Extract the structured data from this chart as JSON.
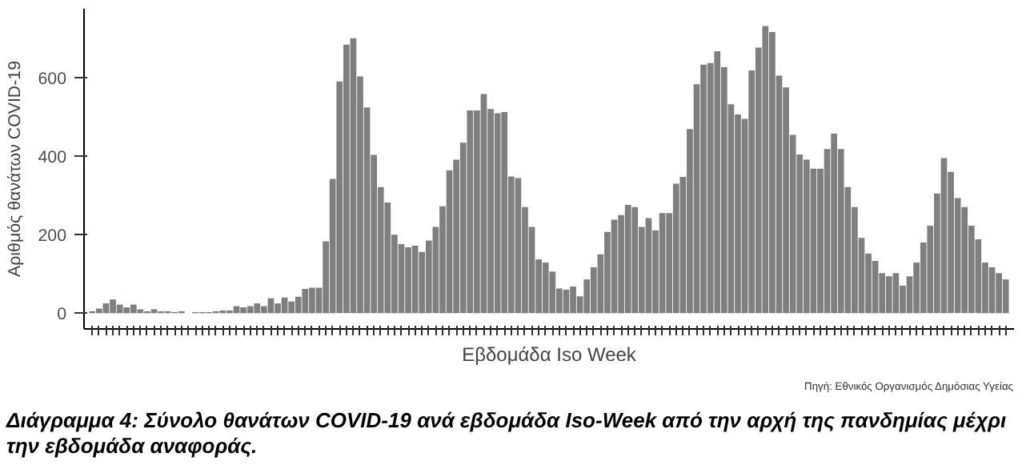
{
  "chart_data": {
    "type": "bar",
    "title": "Διάγραμμα 4: Σύνολο θανάτων COVID-19 ανά εβδομάδα Iso-Week από την αρχή της πανδημίας μέχρι την εβδομάδα αναφοράς.",
    "xlabel": "Εβδομάδα Iso Week",
    "ylabel": "Αριθμός θανάτων COVID-19",
    "annotations": [
      "Πηγή: Εθνικός Οργανισμός Δημόσιας Υγείας"
    ],
    "categories": [
      null,
      null,
      null,
      null,
      null,
      null,
      null,
      null,
      null,
      null,
      null,
      null,
      null,
      null,
      null,
      null,
      null,
      null,
      null,
      null,
      null,
      null,
      null,
      null,
      null,
      null,
      null,
      null,
      null,
      null,
      null,
      null,
      null,
      null,
      null,
      null,
      null,
      null,
      null,
      null,
      null,
      null,
      null,
      null,
      null,
      null,
      null,
      null,
      null,
      null,
      null,
      null,
      null,
      null,
      null,
      null,
      null,
      null,
      null,
      null,
      null,
      null,
      null,
      null,
      null,
      null,
      null,
      null,
      null,
      null,
      null,
      null,
      null,
      null,
      null,
      null,
      null,
      null,
      null,
      null,
      null,
      null,
      null,
      null,
      null,
      null,
      null,
      null,
      null,
      null,
      null,
      null,
      null,
      null,
      null,
      null,
      null,
      null,
      null,
      null,
      null,
      null,
      null,
      null,
      null,
      null,
      null,
      null,
      null,
      null,
      null,
      null,
      null,
      null,
      null,
      null,
      null,
      null,
      null,
      null,
      null,
      null,
      null,
      null,
      null,
      null,
      null,
      null,
      null,
      null,
      null,
      null,
      null,
      null
    ],
    "values": [
      5,
      12,
      25,
      35,
      22,
      15,
      22,
      10,
      5,
      10,
      5,
      5,
      3,
      5,
      0,
      3,
      3,
      3,
      5,
      7,
      7,
      18,
      15,
      18,
      25,
      18,
      38,
      25,
      40,
      30,
      42,
      62,
      65,
      65,
      183,
      342,
      590,
      684,
      700,
      603,
      524,
      403,
      321,
      282,
      200,
      176,
      168,
      172,
      156,
      185,
      220,
      272,
      364,
      391,
      434,
      516,
      516,
      558,
      520,
      509,
      512,
      348,
      344,
      270,
      220,
      137,
      129,
      106,
      63,
      60,
      68,
      43,
      86,
      117,
      150,
      207,
      238,
      250,
      276,
      270,
      220,
      242,
      211,
      255,
      255,
      330,
      347,
      469,
      583,
      633,
      637,
      667,
      627,
      532,
      506,
      495,
      618,
      676,
      731,
      716,
      605,
      575,
      454,
      404,
      391,
      368,
      368,
      418,
      457,
      418,
      321,
      270,
      192,
      152,
      133,
      102,
      94,
      102,
      70,
      94,
      129,
      180,
      223,
      305,
      395,
      360,
      293,
      270,
      223,
      188,
      129,
      117,
      102,
      86
    ],
    "color": "#7f7f7f",
    "ylim": [
      -40,
      775
    ],
    "yticks": [
      0,
      200,
      400,
      600
    ],
    "tick_labels": "y",
    "grid": false
  }
}
